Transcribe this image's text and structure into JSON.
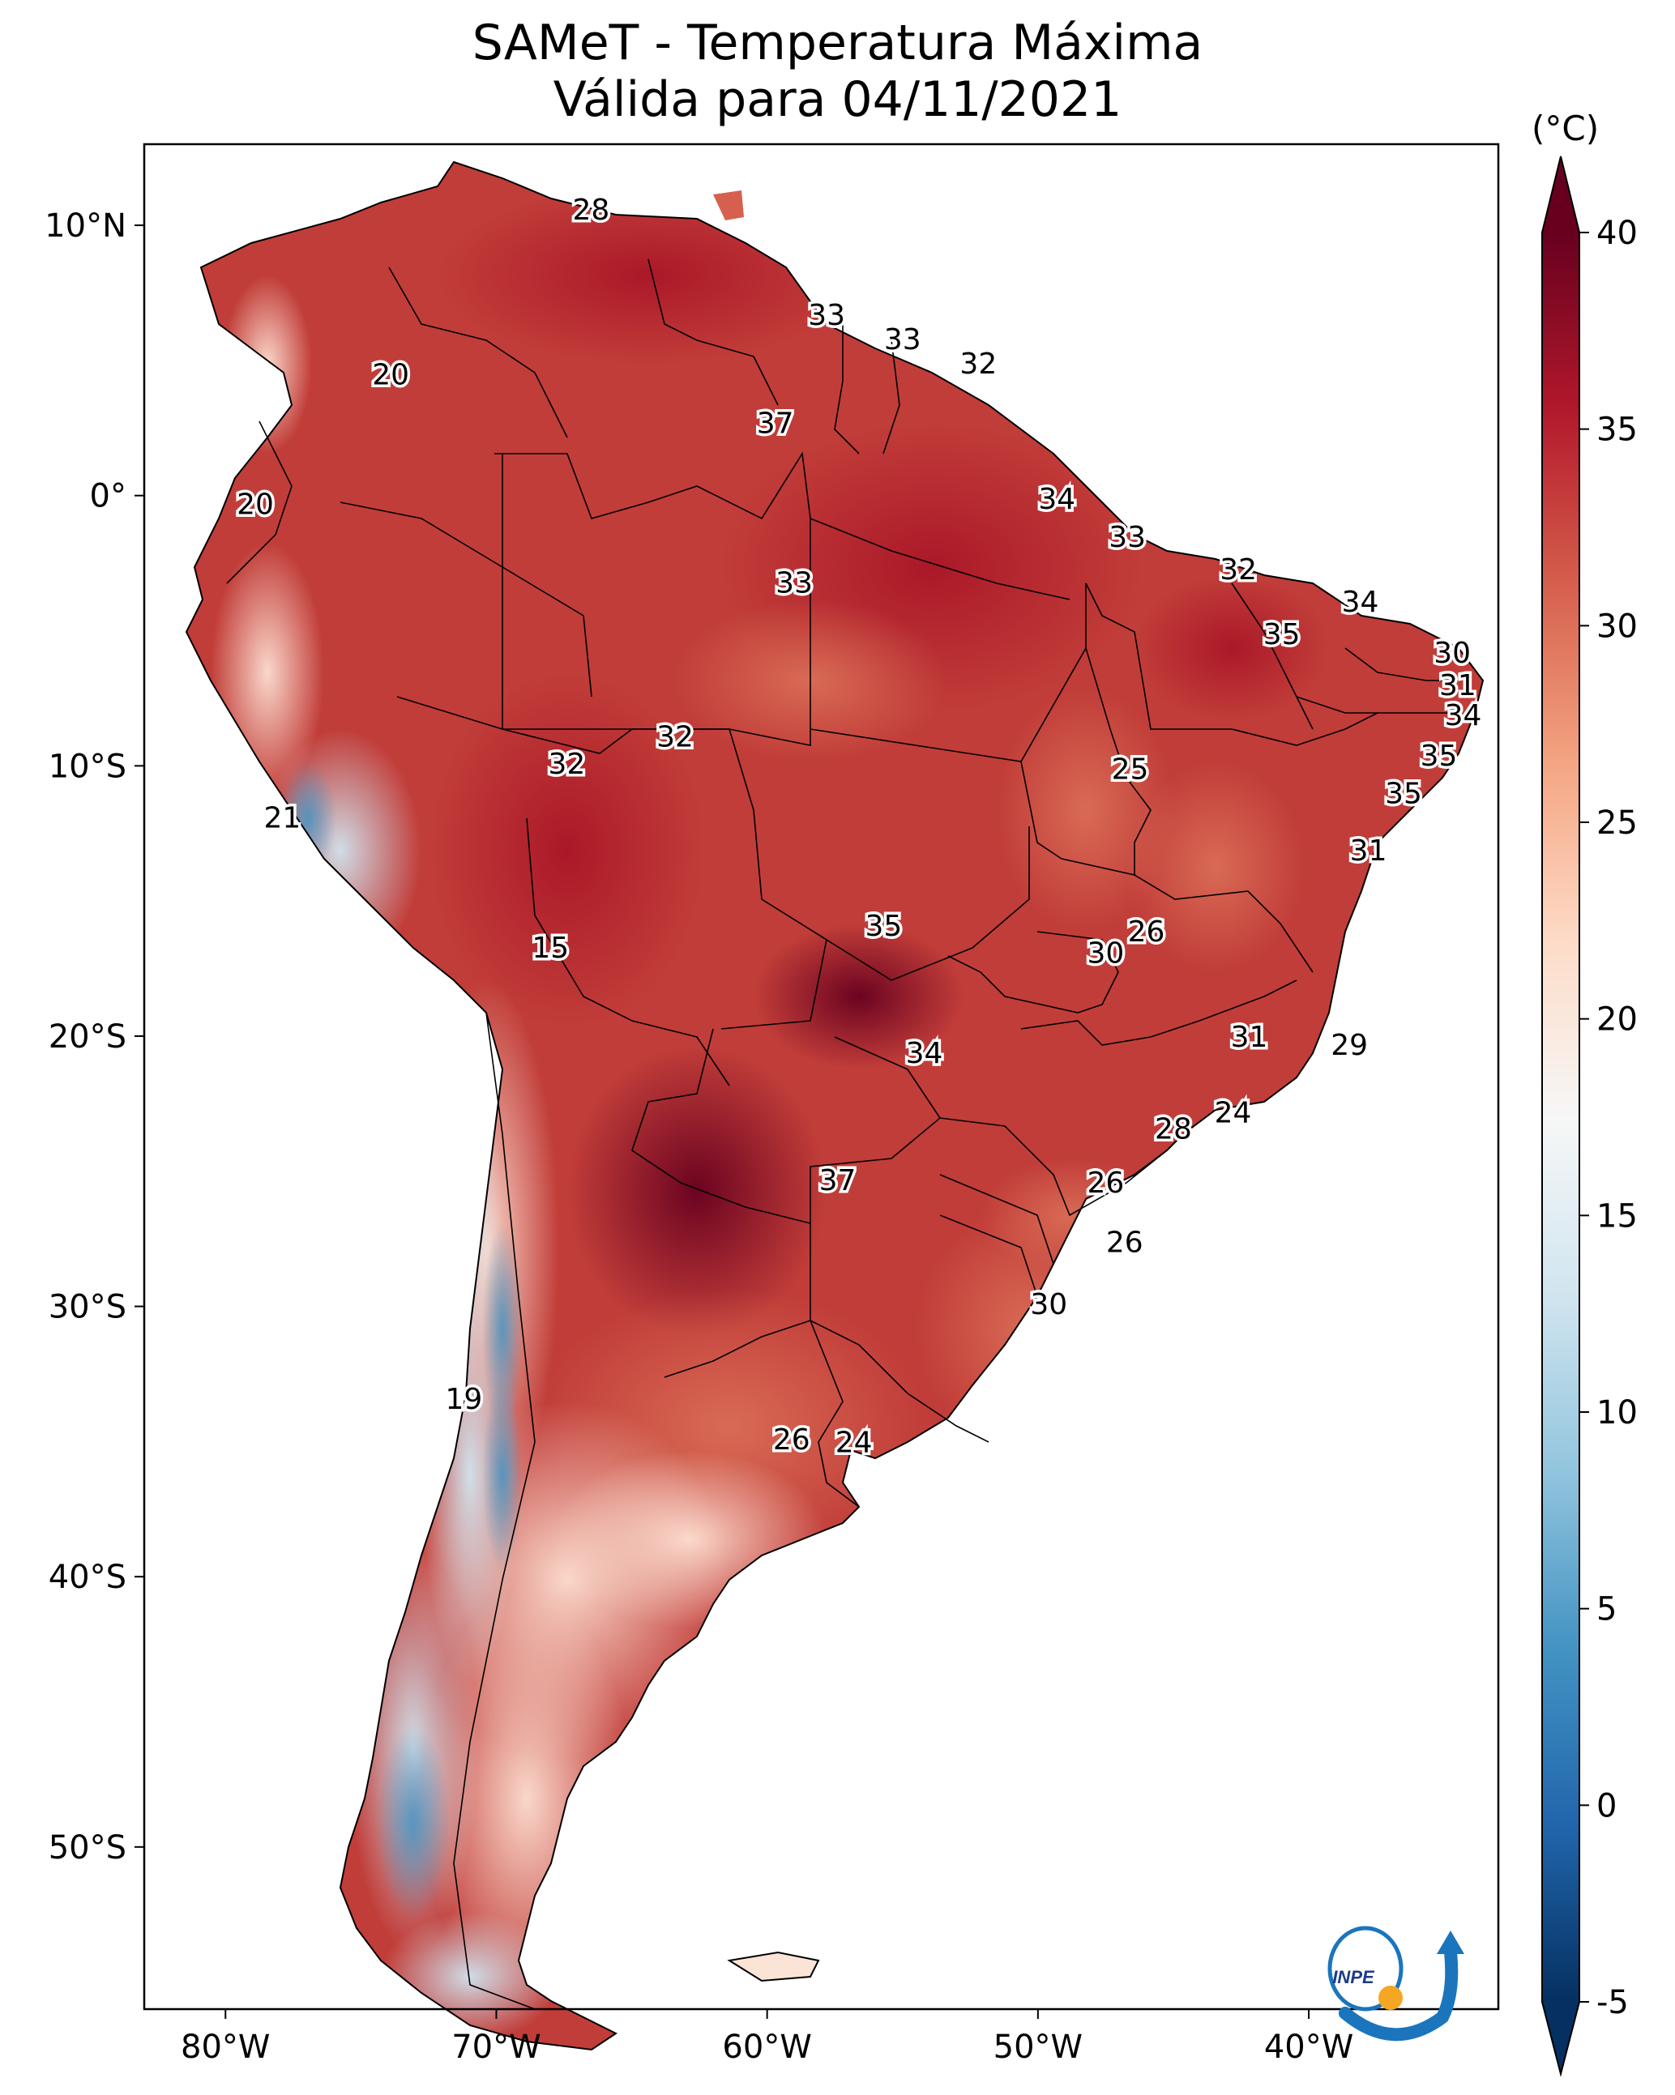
{
  "title": {
    "line1": "SAMeT - Temperatura Máxima",
    "line2": "Válida para 04/11/2021"
  },
  "colorbar": {
    "unit": "(°C)",
    "ticks": [
      "40",
      "35",
      "30",
      "25",
      "20",
      "15",
      "10",
      "5",
      "0",
      "-5"
    ],
    "tick_values": [
      40,
      35,
      30,
      25,
      20,
      15,
      10,
      5,
      0,
      -5
    ],
    "range": [
      -5,
      40
    ],
    "colors": [
      "#053061",
      "#2166ac",
      "#4393c3",
      "#92c5de",
      "#d1e5f0",
      "#f7f7f7",
      "#fddbc7",
      "#f4a582",
      "#d6604d",
      "#b2182b",
      "#67001f"
    ]
  },
  "axes": {
    "lon_ticks": [
      "80°W",
      "70°W",
      "60°W",
      "50°W",
      "40°W"
    ],
    "lon_values": [
      -80,
      -70,
      -60,
      -50,
      -40
    ],
    "lat_ticks": [
      "10°N",
      "0°",
      "10°S",
      "20°S",
      "30°S",
      "40°S",
      "50°S"
    ],
    "lat_values": [
      10,
      0,
      -10,
      -20,
      -30,
      -40,
      -50
    ],
    "lon_range": [
      -83,
      -33
    ],
    "lat_range": [
      -56,
      13
    ]
  },
  "chart_data": {
    "type": "heatmap",
    "title": "SAMeT - Temperatura Máxima Válida para 04/11/2021",
    "colorbar_label": "(°C)",
    "labels": [
      {
        "value": "28",
        "lon": -66.5,
        "lat": 10.6
      },
      {
        "value": "20",
        "lon": -73.9,
        "lat": 4.5
      },
      {
        "value": "33",
        "lon": -57.8,
        "lat": 6.7
      },
      {
        "value": "33",
        "lon": -55.0,
        "lat": 5.8
      },
      {
        "value": "32",
        "lon": -52.2,
        "lat": 4.9
      },
      {
        "value": "37",
        "lon": -59.7,
        "lat": 2.7
      },
      {
        "value": "20",
        "lon": -78.9,
        "lat": -0.3
      },
      {
        "value": "34",
        "lon": -49.3,
        "lat": -0.1
      },
      {
        "value": "33",
        "lon": -46.7,
        "lat": -1.5
      },
      {
        "value": "32",
        "lon": -42.6,
        "lat": -2.7
      },
      {
        "value": "33",
        "lon": -59.0,
        "lat": -3.2
      },
      {
        "value": "34",
        "lon": -38.1,
        "lat": -3.9
      },
      {
        "value": "35",
        "lon": -41.0,
        "lat": -5.1
      },
      {
        "value": "30",
        "lon": -34.7,
        "lat": -5.8
      },
      {
        "value": "31",
        "lon": -34.5,
        "lat": -7.0
      },
      {
        "value": "34",
        "lon": -34.3,
        "lat": -8.1
      },
      {
        "value": "32",
        "lon": -63.4,
        "lat": -8.9
      },
      {
        "value": "32",
        "lon": -67.4,
        "lat": -9.9
      },
      {
        "value": "35",
        "lon": -35.2,
        "lat": -9.6
      },
      {
        "value": "25",
        "lon": -46.6,
        "lat": -10.1
      },
      {
        "value": "35",
        "lon": -36.5,
        "lat": -11.0
      },
      {
        "value": "21",
        "lon": -77.9,
        "lat": -11.9
      },
      {
        "value": "31",
        "lon": -37.8,
        "lat": -13.1
      },
      {
        "value": "35",
        "lon": -55.7,
        "lat": -15.9
      },
      {
        "value": "26",
        "lon": -46.0,
        "lat": -16.1
      },
      {
        "value": "30",
        "lon": -47.5,
        "lat": -16.9
      },
      {
        "value": "15",
        "lon": -68.0,
        "lat": -16.7
      },
      {
        "value": "31",
        "lon": -42.2,
        "lat": -20.0
      },
      {
        "value": "29",
        "lon": -38.5,
        "lat": -20.3
      },
      {
        "value": "34",
        "lon": -54.2,
        "lat": -20.6
      },
      {
        "value": "24",
        "lon": -42.8,
        "lat": -22.8
      },
      {
        "value": "28",
        "lon": -45.0,
        "lat": -23.4
      },
      {
        "value": "37",
        "lon": -57.4,
        "lat": -25.3
      },
      {
        "value": "26",
        "lon": -47.5,
        "lat": -25.4
      },
      {
        "value": "26",
        "lon": -46.8,
        "lat": -27.6
      },
      {
        "value": "30",
        "lon": -49.6,
        "lat": -29.9
      },
      {
        "value": "19",
        "lon": -71.2,
        "lat": -33.4
      },
      {
        "value": "26",
        "lon": -59.1,
        "lat": -34.9
      },
      {
        "value": "24",
        "lon": -56.8,
        "lat": -35.0
      }
    ]
  },
  "logo": {
    "text": "INPE"
  }
}
